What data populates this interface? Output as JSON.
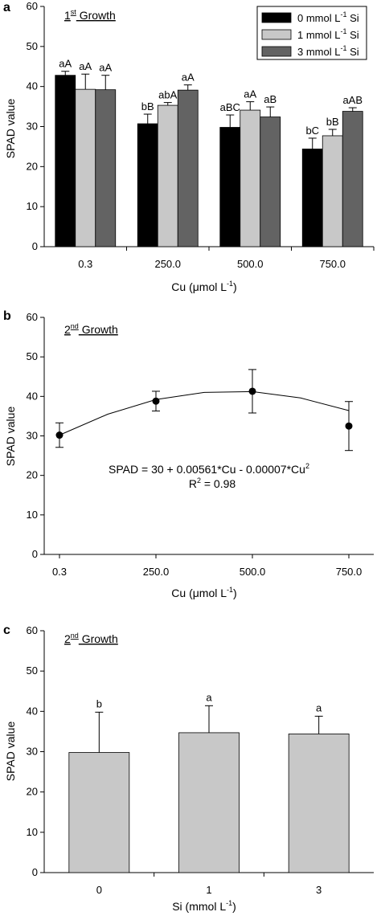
{
  "panels": [
    {
      "letter": "a",
      "growth_ord": "1",
      "growth_sup": "st",
      "growth_text": " Growth",
      "ylabel": "SPAD value",
      "xlabel_pre": "Cu (μmol L",
      "xlabel_sup": "-1",
      "xlabel_post": ")",
      "legend": [
        {
          "pre": "0 mmol L",
          "sup": "-1",
          "post": " Si"
        },
        {
          "pre": "1 mmol L",
          "sup": "-1",
          "post": " Si"
        },
        {
          "pre": "3 mmol L",
          "sup": "-1",
          "post": " Si"
        }
      ]
    },
    {
      "letter": "b",
      "growth_ord": "2",
      "growth_sup": "nd",
      "growth_text": " Growth",
      "ylabel": "SPAD value",
      "xlabel_pre": "Cu (μmol L",
      "xlabel_sup": "-1",
      "xlabel_post": ")",
      "equation_pre": "SPAD = 30 + 0.00561*Cu - 0.00007*Cu",
      "equation_sup": "2",
      "r2": "R",
      "r2_sup": "2",
      "r2_post": " = 0.98"
    },
    {
      "letter": "c",
      "growth_ord": "2",
      "growth_sup": "nd",
      "growth_text": " Growth",
      "ylabel": "SPAD value",
      "xlabel_pre": "Si (mmol L",
      "xlabel_sup": "-1",
      "xlabel_post": ")"
    }
  ],
  "chart_data": [
    {
      "type": "bar",
      "categories": [
        "0.3",
        "250.0",
        "500.0",
        "750.0"
      ],
      "ylim": [
        0,
        60
      ],
      "yticks": [
        0,
        10,
        20,
        30,
        40,
        50,
        60
      ],
      "colors": [
        "#000000",
        "#c8c8c8",
        "#636363"
      ],
      "series": [
        {
          "name": "0 mmol L-1 Si",
          "values": [
            42.8,
            30.7,
            29.8,
            24.4
          ],
          "errors": [
            1.0,
            2.4,
            3.1,
            2.7
          ],
          "labels": [
            "aA",
            "bB",
            "aBC",
            "bC"
          ]
        },
        {
          "name": "1 mmol L-1 Si",
          "values": [
            39.3,
            35.3,
            34.1,
            27.7
          ],
          "errors": [
            3.8,
            0.7,
            2.1,
            1.6
          ],
          "labels": [
            "aA",
            "abA",
            "aA",
            "bB"
          ]
        },
        {
          "name": "3 mmol L-1 Si",
          "values": [
            39.2,
            39.1,
            32.4,
            33.8
          ],
          "errors": [
            3.6,
            1.3,
            2.5,
            0.9
          ],
          "labels": [
            "aA",
            "aA",
            "aB",
            "aAB"
          ]
        }
      ]
    },
    {
      "type": "scatter",
      "x": [
        "0.3",
        "250.0",
        "500.0",
        "750.0"
      ],
      "y": [
        30.2,
        38.8,
        41.3,
        32.5
      ],
      "errors": [
        3.1,
        2.5,
        5.5,
        6.2
      ],
      "ylim": [
        0,
        60
      ],
      "yticks": [
        0,
        10,
        20,
        30,
        40,
        50,
        60
      ],
      "fit_curve": [
        [
          0,
          30.2
        ],
        [
          0.5,
          35.5
        ],
        [
          1,
          39.2
        ],
        [
          1.5,
          41.0
        ],
        [
          2,
          41.2
        ],
        [
          2.5,
          39.6
        ],
        [
          3,
          36.4
        ]
      ]
    },
    {
      "type": "bar",
      "categories": [
        "0",
        "1",
        "3"
      ],
      "values": [
        29.8,
        34.7,
        34.4
      ],
      "errors": [
        10.0,
        6.7,
        4.4
      ],
      "labels": [
        "b",
        "a",
        "a"
      ],
      "color": "#c8c8c8",
      "ylim": [
        0,
        60
      ],
      "yticks": [
        0,
        10,
        20,
        30,
        40,
        50,
        60
      ]
    }
  ]
}
